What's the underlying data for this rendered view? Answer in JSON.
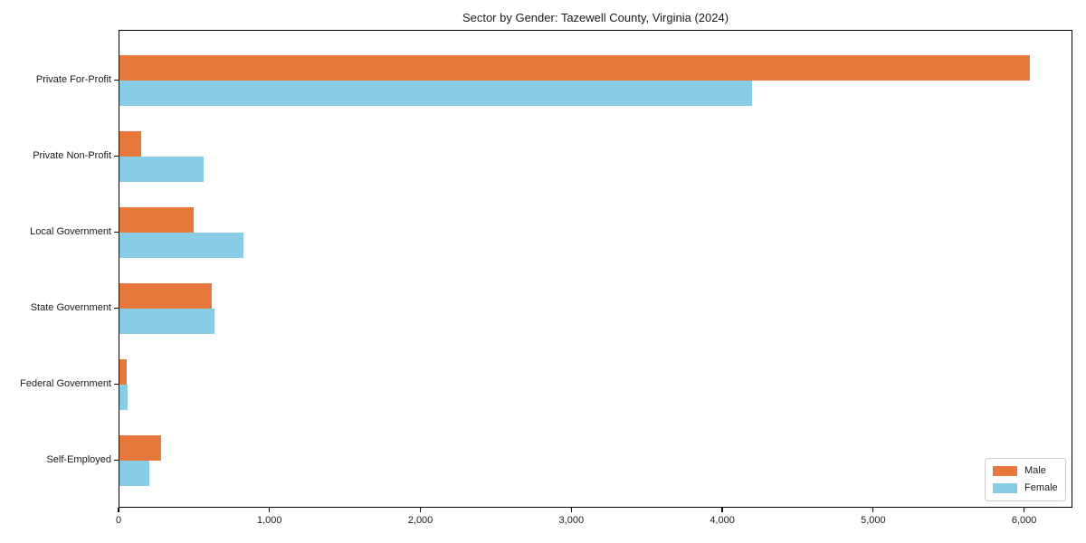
{
  "chart_data": {
    "type": "bar",
    "orientation": "horizontal",
    "title": "Sector by Gender: Tazewell County, Virginia (2024)",
    "categories": [
      "Private For-Profit",
      "Private Non-Profit",
      "Local Government",
      "State Government",
      "Federal Government",
      "Self-Employed"
    ],
    "series": [
      {
        "name": "Male",
        "color": "#E8793C",
        "values": [
          6030,
          145,
          490,
          610,
          45,
          275
        ]
      },
      {
        "name": "Female",
        "color": "#89CCE6",
        "values": [
          4190,
          555,
          820,
          630,
          55,
          195
        ]
      }
    ],
    "xlabel": "",
    "ylabel": "",
    "xlim": [
      0,
      6320
    ],
    "x_ticks": [
      0,
      1000,
      2000,
      3000,
      4000,
      5000,
      6000
    ],
    "x_tick_labels": [
      "0",
      "1,000",
      "2,000",
      "3,000",
      "4,000",
      "5,000",
      "6,000"
    ],
    "grid": false,
    "legend": {
      "position": "lower right"
    },
    "colors": {
      "spine": "#000000",
      "background": "#ffffff",
      "legend_border": "#cccccc"
    }
  }
}
